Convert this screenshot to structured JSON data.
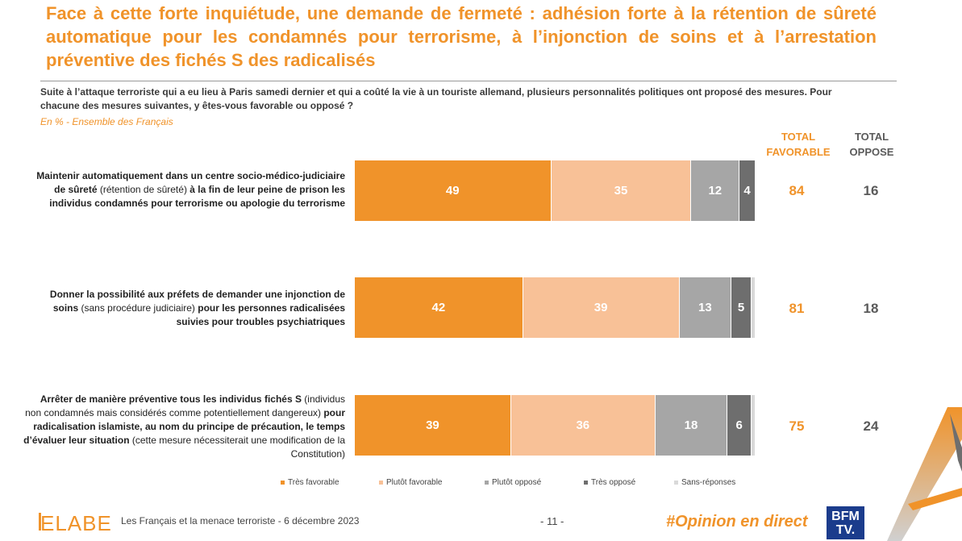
{
  "header": {
    "title": "Face à cette forte inquiétude, une demande de fermeté : adhésion forte à la rétention de sûreté automatique pour les condamnés pour terrorisme, à l’injonction de soins et à l’arrestation préventive des fichés S des radicalisés",
    "question": "Suite à l’attaque terroriste qui a eu lieu à Paris samedi dernier et qui a coûté la vie à un touriste allemand, plusieurs personnalités politiques ont proposé des mesures. Pour chacune des mesures suivantes, y êtes-vous favorable ou opposé ?",
    "base": "En % - Ensemble des Français"
  },
  "columns": {
    "favorable_line1": "TOTAL",
    "favorable_line2": "FAVORABLE",
    "oppose_line1": "TOTAL",
    "oppose_line2": "OPPOSE"
  },
  "rows": [
    {
      "label_parts": [
        {
          "t": "Maintenir automatiquement dans un centre socio-médico-judiciaire de sûreté ",
          "b": true
        },
        {
          "t": "(rétention de sûreté)",
          "b": false
        },
        {
          "t": " à la fin de leur peine de prison les individus condamnés pour terrorisme ou apologie du terrorisme",
          "b": true
        }
      ]
    },
    {
      "label_parts": [
        {
          "t": "Donner la possibilité aux préfets de demander une injonction de soins ",
          "b": true
        },
        {
          "t": "(sans procédure judiciaire)",
          "b": false
        },
        {
          "t": " pour les personnes radicalisées suivies pour troubles psychiatriques",
          "b": true
        }
      ]
    },
    {
      "label_parts": [
        {
          "t": "Arrêter de manière préventive tous les individus fichés S ",
          "b": true
        },
        {
          "t": "(individus non condamnés mais considérés comme potentiellement dangereux)",
          "b": false
        },
        {
          "t": " pour radicalisation islamiste, au nom du principe de précaution, le temps d’évaluer leur situation ",
          "b": true
        },
        {
          "t": "(cette mesure nécessiterait une modification de la Constitution)",
          "b": false
        }
      ]
    }
  ],
  "chart_data": {
    "type": "bar",
    "orientation": "horizontal",
    "stacked": true,
    "categories": [
      "Rétention de sûreté",
      "Injonction de soins",
      "Arrestation préventive des fichés S"
    ],
    "series": [
      {
        "name": "Très favorable",
        "color": "#f0932a",
        "values": [
          49,
          42,
          39
        ]
      },
      {
        "name": "Plutôt favorable",
        "color": "#f8c197",
        "values": [
          35,
          39,
          36
        ]
      },
      {
        "name": "Plutôt opposé",
        "color": "#a6a6a6",
        "values": [
          12,
          13,
          18
        ]
      },
      {
        "name": "Très opposé",
        "color": "#6e6e6e",
        "values": [
          4,
          5,
          6
        ]
      },
      {
        "name": "Sans-réponses",
        "color": "#d9d9d9",
        "values": [
          0,
          1,
          1
        ]
      }
    ],
    "total_favorable": [
      84,
      81,
      75
    ],
    "total_oppose": [
      16,
      18,
      24
    ],
    "legend_position": "bottom"
  },
  "footer": {
    "logo": "ELABE",
    "source": "Les Français et la menace terroriste - 6 décembre 2023",
    "page": "- 11 -",
    "hashtag": "#Opinion en direct",
    "channel_line1": "BFM",
    "channel_line2": "TV."
  }
}
